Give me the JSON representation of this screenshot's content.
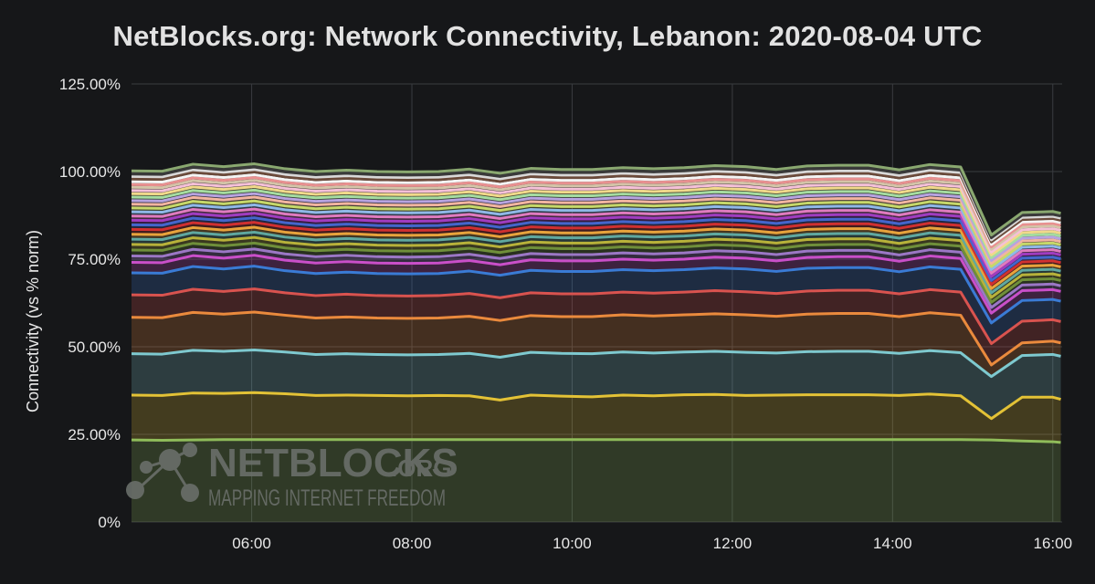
{
  "chart_data": {
    "type": "area",
    "stacked": true,
    "title": "NetBlocks.org: Network Connectivity, Lebanon: 2020-08-04 UTC",
    "ylabel": "Connectivity (vs % norm)",
    "xlabel": "",
    "ylim": [
      0,
      125
    ],
    "xlim": [
      "04:30",
      "16:07"
    ],
    "yticks": [
      "0%",
      "25.00%",
      "50.00%",
      "75.00%",
      "100.00%",
      "125.00%"
    ],
    "xticks": [
      "06:00",
      "08:00",
      "10:00",
      "12:00",
      "14:00",
      "16:00"
    ],
    "grid": true,
    "legend": "none",
    "x": [
      "04:30",
      "04:53",
      "05:16",
      "05:39",
      "06:02",
      "06:25",
      "06:48",
      "07:11",
      "07:34",
      "07:57",
      "08:20",
      "08:43",
      "09:06",
      "09:29",
      "09:52",
      "10:15",
      "10:38",
      "11:01",
      "11:24",
      "11:47",
      "12:10",
      "12:33",
      "12:56",
      "13:19",
      "13:42",
      "14:05",
      "14:28",
      "14:51",
      "15:14",
      "15:37",
      "16:00",
      "16:06"
    ],
    "series": [
      {
        "color": "#8fbc5a",
        "values": [
          23.4,
          23.3,
          23.4,
          23.5,
          23.5,
          23.5,
          23.5,
          23.5,
          23.5,
          23.5,
          23.5,
          23.5,
          23.5,
          23.5,
          23.5,
          23.5,
          23.5,
          23.5,
          23.5,
          23.5,
          23.5,
          23.5,
          23.5,
          23.5,
          23.5,
          23.5,
          23.5,
          23.5,
          23.4,
          23.1,
          22.9,
          22.7
        ]
      },
      {
        "color": "#e3c236",
        "values": [
          12.8,
          12.8,
          13.4,
          13.2,
          13.4,
          13.1,
          12.6,
          12.7,
          12.6,
          12.5,
          12.6,
          12.5,
          11.3,
          12.7,
          12.4,
          12.2,
          12.7,
          12.5,
          12.8,
          12.9,
          12.6,
          12.7,
          12.8,
          12.8,
          12.8,
          12.6,
          13.0,
          12.5,
          6.1,
          12.5,
          12.7,
          12.3
        ]
      },
      {
        "color": "#7ec9cf",
        "values": [
          11.8,
          11.8,
          12.2,
          12.0,
          12.2,
          11.9,
          11.7,
          11.8,
          11.7,
          11.7,
          11.7,
          12.1,
          12.2,
          12.2,
          12.2,
          12.3,
          12.3,
          12.2,
          12.2,
          12.3,
          12.3,
          12.0,
          12.3,
          12.4,
          12.4,
          12.0,
          12.4,
          12.3,
          12.0,
          11.9,
          12.2,
          12.3
        ]
      },
      {
        "color": "#ea8a3d",
        "values": [
          10.4,
          10.4,
          10.8,
          10.6,
          10.8,
          10.5,
          10.4,
          10.5,
          10.4,
          10.4,
          10.4,
          10.6,
          10.5,
          10.5,
          10.5,
          10.6,
          10.6,
          10.6,
          10.6,
          10.7,
          10.7,
          10.5,
          10.7,
          10.8,
          10.8,
          10.5,
          10.8,
          10.7,
          3.3,
          3.6,
          3.8,
          3.8
        ]
      },
      {
        "color": "#d9534f",
        "values": [
          6.4,
          6.4,
          6.6,
          6.5,
          6.6,
          6.4,
          6.4,
          6.5,
          6.4,
          6.4,
          6.4,
          6.5,
          6.5,
          6.5,
          6.5,
          6.5,
          6.5,
          6.5,
          6.5,
          6.6,
          6.6,
          6.5,
          6.6,
          6.6,
          6.6,
          6.5,
          6.6,
          6.6,
          6.1,
          6.2,
          6.1,
          6.1
        ]
      },
      {
        "color": "#3a7bd5",
        "values": [
          6.3,
          6.3,
          6.5,
          6.4,
          6.5,
          6.3,
          6.3,
          6.3,
          6.3,
          6.3,
          6.3,
          6.4,
          6.4,
          6.4,
          6.4,
          6.4,
          6.4,
          6.4,
          6.4,
          6.5,
          6.5,
          6.3,
          6.5,
          6.5,
          6.5,
          6.3,
          6.5,
          6.5,
          5.9,
          5.9,
          5.8,
          5.8
        ]
      },
      {
        "color": "#c94fc9",
        "values": [
          3.0,
          3.0,
          3.1,
          3.1,
          3.1,
          3.0,
          3.0,
          3.0,
          3.0,
          3.0,
          3.0,
          3.0,
          3.0,
          3.0,
          3.0,
          3.0,
          3.0,
          3.0,
          3.0,
          3.1,
          3.1,
          3.0,
          3.1,
          3.1,
          3.1,
          3.0,
          3.1,
          3.1,
          2.8,
          2.8,
          2.8,
          2.8
        ]
      },
      {
        "color": "#9b77c5",
        "values": [
          1.8,
          1.8,
          1.8,
          1.8,
          1.8,
          1.8,
          1.8,
          1.8,
          1.8,
          1.8,
          1.8,
          1.8,
          1.8,
          1.8,
          1.8,
          1.8,
          1.8,
          1.8,
          1.8,
          1.8,
          1.8,
          1.8,
          1.8,
          1.8,
          1.8,
          1.8,
          1.8,
          1.8,
          1.6,
          1.6,
          1.6,
          1.6
        ]
      },
      {
        "color": "#6f8f3a",
        "values": [
          1.7,
          1.7,
          1.7,
          1.7,
          1.7,
          1.7,
          1.7,
          1.7,
          1.7,
          1.7,
          1.7,
          1.7,
          1.7,
          1.7,
          1.7,
          1.7,
          1.7,
          1.7,
          1.7,
          1.7,
          1.7,
          1.7,
          1.7,
          1.7,
          1.7,
          1.7,
          1.7,
          1.7,
          1.5,
          1.5,
          1.5,
          1.5
        ]
      },
      {
        "color": "#b8b23a",
        "values": [
          1.6,
          1.6,
          1.6,
          1.6,
          1.6,
          1.6,
          1.6,
          1.6,
          1.6,
          1.6,
          1.6,
          1.6,
          1.6,
          1.6,
          1.6,
          1.6,
          1.6,
          1.6,
          1.6,
          1.6,
          1.6,
          1.6,
          1.6,
          1.6,
          1.6,
          1.6,
          1.6,
          1.6,
          1.4,
          1.4,
          1.4,
          1.4
        ]
      },
      {
        "color": "#5fa8a0",
        "values": [
          1.5,
          1.5,
          1.5,
          1.5,
          1.5,
          1.5,
          1.5,
          1.5,
          1.5,
          1.5,
          1.5,
          1.5,
          1.5,
          1.5,
          1.5,
          1.5,
          1.5,
          1.5,
          1.5,
          1.5,
          1.5,
          1.5,
          1.5,
          1.5,
          1.5,
          1.5,
          1.5,
          1.5,
          1.3,
          1.3,
          1.3,
          1.3
        ]
      },
      {
        "color": "#e8a33c",
        "values": [
          1.4,
          1.4,
          1.4,
          1.4,
          1.4,
          1.4,
          1.4,
          1.4,
          1.4,
          1.4,
          1.4,
          1.4,
          1.4,
          1.4,
          1.4,
          1.4,
          1.4,
          1.4,
          1.4,
          1.4,
          1.4,
          1.4,
          1.4,
          1.4,
          1.4,
          1.4,
          1.4,
          1.4,
          1.2,
          1.2,
          1.2,
          1.2
        ]
      },
      {
        "color": "#d03030",
        "values": [
          1.4,
          1.4,
          1.4,
          1.4,
          1.4,
          1.4,
          1.4,
          1.4,
          1.4,
          1.4,
          1.4,
          1.4,
          1.4,
          1.4,
          1.4,
          1.4,
          1.4,
          1.4,
          1.4,
          1.4,
          1.4,
          1.4,
          1.4,
          1.4,
          1.4,
          1.4,
          1.4,
          1.4,
          1.2,
          1.2,
          1.2,
          1.2
        ]
      },
      {
        "color": "#4466cc",
        "values": [
          1.3,
          1.3,
          1.3,
          1.3,
          1.3,
          1.3,
          1.3,
          1.3,
          1.3,
          1.3,
          1.3,
          1.3,
          1.3,
          1.3,
          1.3,
          1.3,
          1.3,
          1.3,
          1.3,
          1.3,
          1.3,
          1.3,
          1.3,
          1.3,
          1.3,
          1.3,
          1.3,
          1.3,
          1.1,
          1.1,
          1.1,
          1.1
        ]
      },
      {
        "color": "#a03cc0",
        "values": [
          1.3,
          1.3,
          1.3,
          1.3,
          1.3,
          1.3,
          1.3,
          1.3,
          1.3,
          1.3,
          1.3,
          1.3,
          1.3,
          1.3,
          1.3,
          1.3,
          1.3,
          1.3,
          1.3,
          1.3,
          1.3,
          1.3,
          1.3,
          1.3,
          1.3,
          1.3,
          1.3,
          1.3,
          1.1,
          1.1,
          1.1,
          1.1
        ]
      },
      {
        "color": "#e07bbf",
        "values": [
          1.2,
          1.2,
          1.2,
          1.2,
          1.2,
          1.2,
          1.2,
          1.2,
          1.2,
          1.2,
          1.2,
          1.2,
          1.2,
          1.2,
          1.2,
          1.2,
          1.2,
          1.2,
          1.2,
          1.2,
          1.2,
          1.2,
          1.2,
          1.2,
          1.2,
          1.2,
          1.2,
          1.2,
          1.0,
          1.0,
          1.0,
          1.0
        ]
      },
      {
        "color": "#8fb8e8",
        "values": [
          1.2,
          1.2,
          1.2,
          1.2,
          1.2,
          1.2,
          1.2,
          1.2,
          1.2,
          1.2,
          1.2,
          1.2,
          1.2,
          1.2,
          1.2,
          1.2,
          1.2,
          1.2,
          1.2,
          1.2,
          1.2,
          1.2,
          1.2,
          1.2,
          1.2,
          1.2,
          1.2,
          1.2,
          1.0,
          1.0,
          1.0,
          1.0
        ]
      },
      {
        "color": "#c6d86a",
        "values": [
          1.1,
          1.1,
          1.1,
          1.1,
          1.1,
          1.1,
          1.1,
          1.1,
          1.1,
          1.1,
          1.1,
          1.1,
          1.1,
          1.1,
          1.1,
          1.1,
          1.1,
          1.1,
          1.1,
          1.1,
          1.1,
          1.1,
          1.1,
          1.1,
          1.1,
          1.1,
          1.1,
          1.1,
          0.9,
          0.9,
          0.9,
          0.9
        ]
      },
      {
        "color": "#f2b5a0",
        "values": [
          1.1,
          1.1,
          1.1,
          1.1,
          1.1,
          1.1,
          1.1,
          1.1,
          1.1,
          1.1,
          1.1,
          1.1,
          1.1,
          1.1,
          1.1,
          1.1,
          1.1,
          1.1,
          1.1,
          1.1,
          1.1,
          1.1,
          1.1,
          1.1,
          1.1,
          1.1,
          1.1,
          1.1,
          0.9,
          0.9,
          0.9,
          0.9
        ]
      },
      {
        "color": "#b7a3e0",
        "values": [
          1.0,
          1.0,
          1.0,
          1.0,
          1.0,
          1.0,
          1.0,
          1.0,
          1.0,
          1.0,
          1.0,
          1.0,
          1.0,
          1.0,
          1.0,
          1.0,
          1.0,
          1.0,
          1.0,
          1.0,
          1.0,
          1.0,
          1.0,
          1.0,
          1.0,
          1.0,
          1.0,
          1.0,
          0.8,
          0.8,
          0.8,
          0.8
        ]
      },
      {
        "color": "#a5dca0",
        "values": [
          1.0,
          1.0,
          1.0,
          1.0,
          1.0,
          1.0,
          1.0,
          1.0,
          1.0,
          1.0,
          1.0,
          1.0,
          1.0,
          1.0,
          1.0,
          1.0,
          1.0,
          1.0,
          1.0,
          1.0,
          1.0,
          1.0,
          1.0,
          1.0,
          1.0,
          1.0,
          1.0,
          1.0,
          0.8,
          0.8,
          0.8,
          0.8
        ]
      },
      {
        "color": "#f0d98a",
        "values": [
          1.0,
          1.0,
          1.0,
          1.0,
          1.0,
          1.0,
          1.0,
          1.0,
          1.0,
          1.0,
          1.0,
          1.0,
          1.0,
          1.0,
          1.0,
          1.0,
          1.0,
          1.0,
          1.0,
          1.0,
          1.0,
          1.0,
          1.0,
          1.0,
          1.0,
          1.0,
          1.0,
          1.0,
          0.8,
          0.8,
          0.8,
          0.8
        ]
      },
      {
        "color": "#f5c0d8",
        "values": [
          0.9,
          0.9,
          0.9,
          0.9,
          0.9,
          0.9,
          0.9,
          0.9,
          0.9,
          0.9,
          0.9,
          0.9,
          0.9,
          0.9,
          0.9,
          0.9,
          0.9,
          0.9,
          0.9,
          0.9,
          0.9,
          0.9,
          0.9,
          0.9,
          0.9,
          0.9,
          0.9,
          0.9,
          0.8,
          0.8,
          0.8,
          0.8
        ]
      },
      {
        "color": "#d4c4a8",
        "values": [
          0.9,
          0.9,
          0.9,
          0.9,
          0.9,
          0.9,
          0.9,
          0.9,
          0.9,
          0.9,
          0.9,
          0.9,
          0.9,
          0.9,
          0.9,
          0.9,
          0.9,
          0.9,
          0.9,
          0.9,
          0.9,
          0.9,
          0.9,
          0.9,
          0.9,
          0.9,
          0.9,
          0.9,
          0.8,
          0.8,
          0.8,
          0.8
        ]
      },
      {
        "color": "#e89090",
        "values": [
          0.8,
          0.8,
          0.8,
          0.8,
          0.8,
          0.8,
          0.8,
          0.8,
          0.8,
          0.8,
          0.8,
          0.8,
          0.8,
          0.8,
          0.8,
          0.8,
          0.8,
          0.8,
          0.8,
          0.8,
          0.8,
          0.8,
          0.8,
          0.8,
          0.8,
          0.8,
          0.8,
          0.8,
          0.7,
          0.7,
          0.7,
          0.7
        ]
      },
      {
        "color": "#f4f4f4",
        "values": [
          0.8,
          0.8,
          0.8,
          0.8,
          0.8,
          0.8,
          0.8,
          0.8,
          0.8,
          0.8,
          0.8,
          0.8,
          0.8,
          0.8,
          0.8,
          0.8,
          0.8,
          0.8,
          0.8,
          0.8,
          0.8,
          0.8,
          0.8,
          0.8,
          0.8,
          0.8,
          0.8,
          0.8,
          0.7,
          0.7,
          0.7,
          0.7
        ]
      },
      {
        "color": "#6b4a3a",
        "values": [
          0.8,
          0.8,
          0.8,
          0.8,
          0.8,
          0.8,
          0.8,
          0.8,
          0.8,
          0.8,
          0.8,
          0.8,
          0.8,
          0.8,
          0.8,
          0.8,
          0.8,
          0.8,
          0.8,
          0.8,
          0.8,
          0.8,
          0.8,
          0.8,
          0.8,
          0.8,
          0.8,
          0.8,
          0.7,
          0.7,
          0.7,
          0.7
        ]
      },
      {
        "color": "#d8d8d8",
        "values": [
          0.7,
          0.7,
          0.7,
          0.7,
          0.7,
          0.7,
          0.7,
          0.7,
          0.7,
          0.7,
          0.7,
          0.7,
          0.7,
          0.7,
          0.7,
          0.7,
          0.7,
          0.7,
          0.7,
          0.7,
          0.7,
          0.7,
          0.7,
          0.7,
          0.7,
          0.7,
          0.7,
          0.7,
          0.6,
          0.6,
          0.6,
          0.6
        ]
      },
      {
        "color": "#3a3a3a",
        "values": [
          0.7,
          0.7,
          0.7,
          0.7,
          0.7,
          0.7,
          0.7,
          0.7,
          0.7,
          0.7,
          0.7,
          0.7,
          0.7,
          0.7,
          0.7,
          0.7,
          0.7,
          0.7,
          0.7,
          0.7,
          0.7,
          0.7,
          0.7,
          0.7,
          0.7,
          0.7,
          0.7,
          0.7,
          0.6,
          0.6,
          0.6,
          0.6
        ]
      },
      {
        "color": "#8aa870",
        "values": [
          0.9,
          0.9,
          0.9,
          0.9,
          0.9,
          0.9,
          0.9,
          0.9,
          0.9,
          0.9,
          0.9,
          0.9,
          0.9,
          0.9,
          0.9,
          0.9,
          0.9,
          0.9,
          0.9,
          0.9,
          0.9,
          0.9,
          0.9,
          0.9,
          0.9,
          0.9,
          0.9,
          0.9,
          0.8,
          0.8,
          0.8,
          0.8
        ]
      }
    ]
  },
  "watermark": {
    "name": "NETBLOCKS",
    "suffix": ".ORG",
    "tagline": "MAPPING INTERNET FREEDOM"
  }
}
